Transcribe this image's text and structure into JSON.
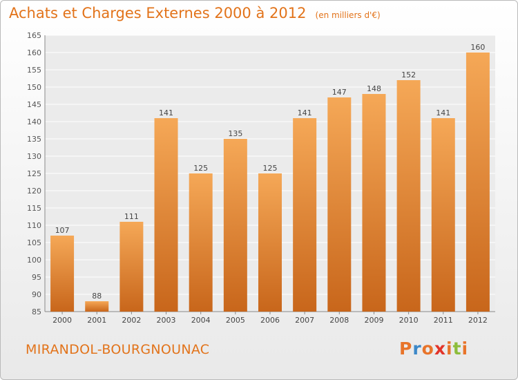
{
  "header": {
    "title": "Achats et Charges Externes 2000 à 2012",
    "unit": "(en milliers d'€)"
  },
  "footer": {
    "commune": "MIRANDOL-BOURGNOUNAC"
  },
  "logo": {
    "text": "Proxiti",
    "colors": [
      "#e8742a",
      "#3c88c8",
      "#e8742a",
      "#e2342a",
      "#e8742a",
      "#8dbd3c",
      "#e8742a"
    ]
  },
  "colors": {
    "bar_top": "#f5a857",
    "bar_bottom": "#c8661b",
    "accent": "#e2731a"
  },
  "chart_data": {
    "type": "bar",
    "title": "Achats et Charges Externes 2000 à 2012",
    "subtitle": "(en milliers d'€)",
    "categories": [
      "2000",
      "2001",
      "2002",
      "2003",
      "2004",
      "2005",
      "2006",
      "2007",
      "2008",
      "2009",
      "2010",
      "2011",
      "2012"
    ],
    "values": [
      107,
      88,
      111,
      141,
      125,
      135,
      125,
      141,
      147,
      148,
      152,
      141,
      160
    ],
    "ylim": [
      85,
      165
    ],
    "yticks": [
      85,
      90,
      95,
      100,
      105,
      110,
      115,
      120,
      125,
      130,
      135,
      140,
      145,
      150,
      155,
      160,
      165
    ],
    "grid": true,
    "data_labels": true
  }
}
